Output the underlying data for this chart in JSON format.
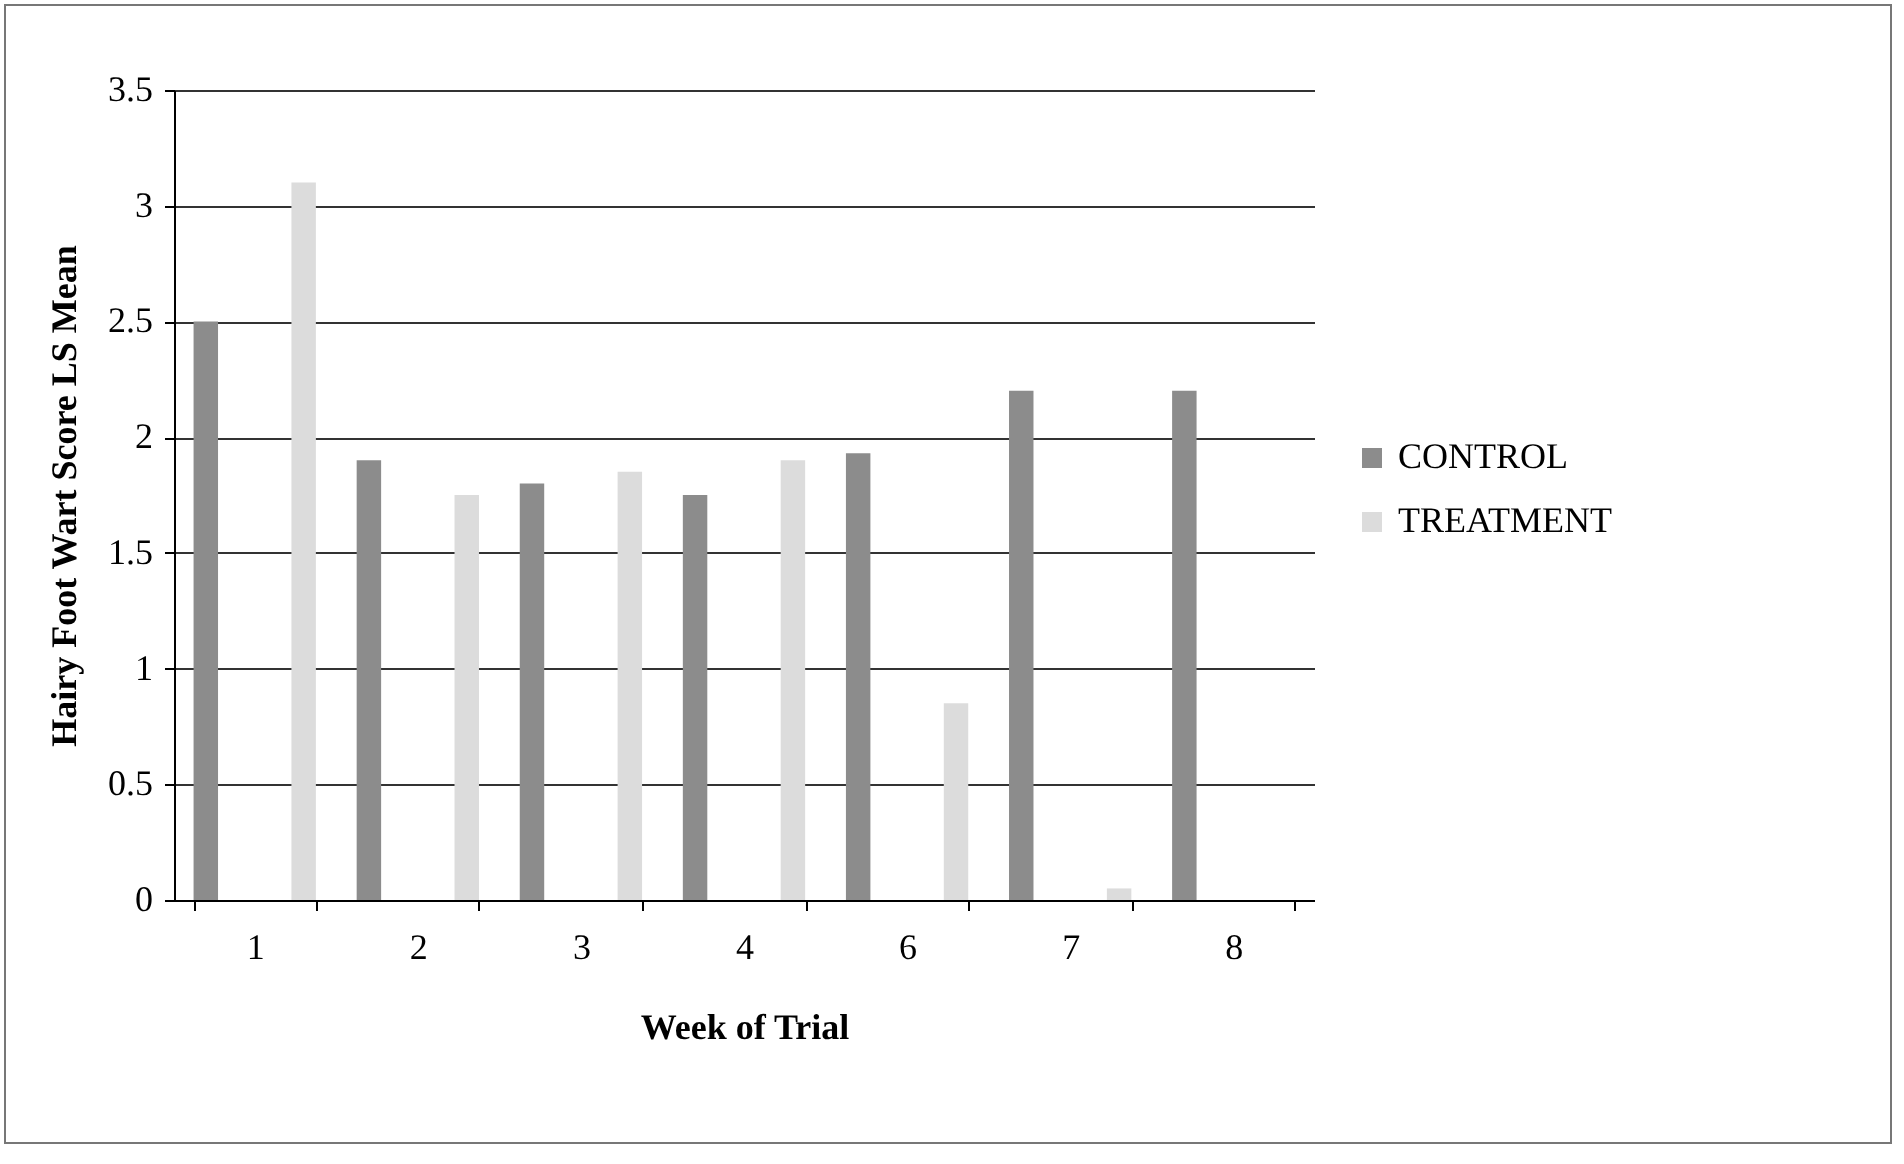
{
  "chart_data": {
    "type": "bar",
    "xlabel": "Week of Trial",
    "ylabel": "Hairy Foot Wart Score LS Mean",
    "categories": [
      "1",
      "2",
      "3",
      "4",
      "6",
      "7",
      "8"
    ],
    "series": [
      {
        "name": "CONTROL",
        "color": "#8c8c8c",
        "values": [
          2.5,
          1.9,
          1.8,
          1.75,
          1.93,
          2.2,
          2.2
        ]
      },
      {
        "name": "TREATMENT",
        "color": "#dcdcdc",
        "values": [
          3.1,
          1.75,
          1.85,
          1.9,
          0.85,
          0.05,
          0
        ]
      }
    ],
    "ylim": [
      0,
      3.5
    ],
    "yticks": [
      0,
      0.5,
      1,
      1.5,
      2,
      2.5,
      3,
      3.5
    ],
    "grid": "y",
    "legend": "right"
  }
}
